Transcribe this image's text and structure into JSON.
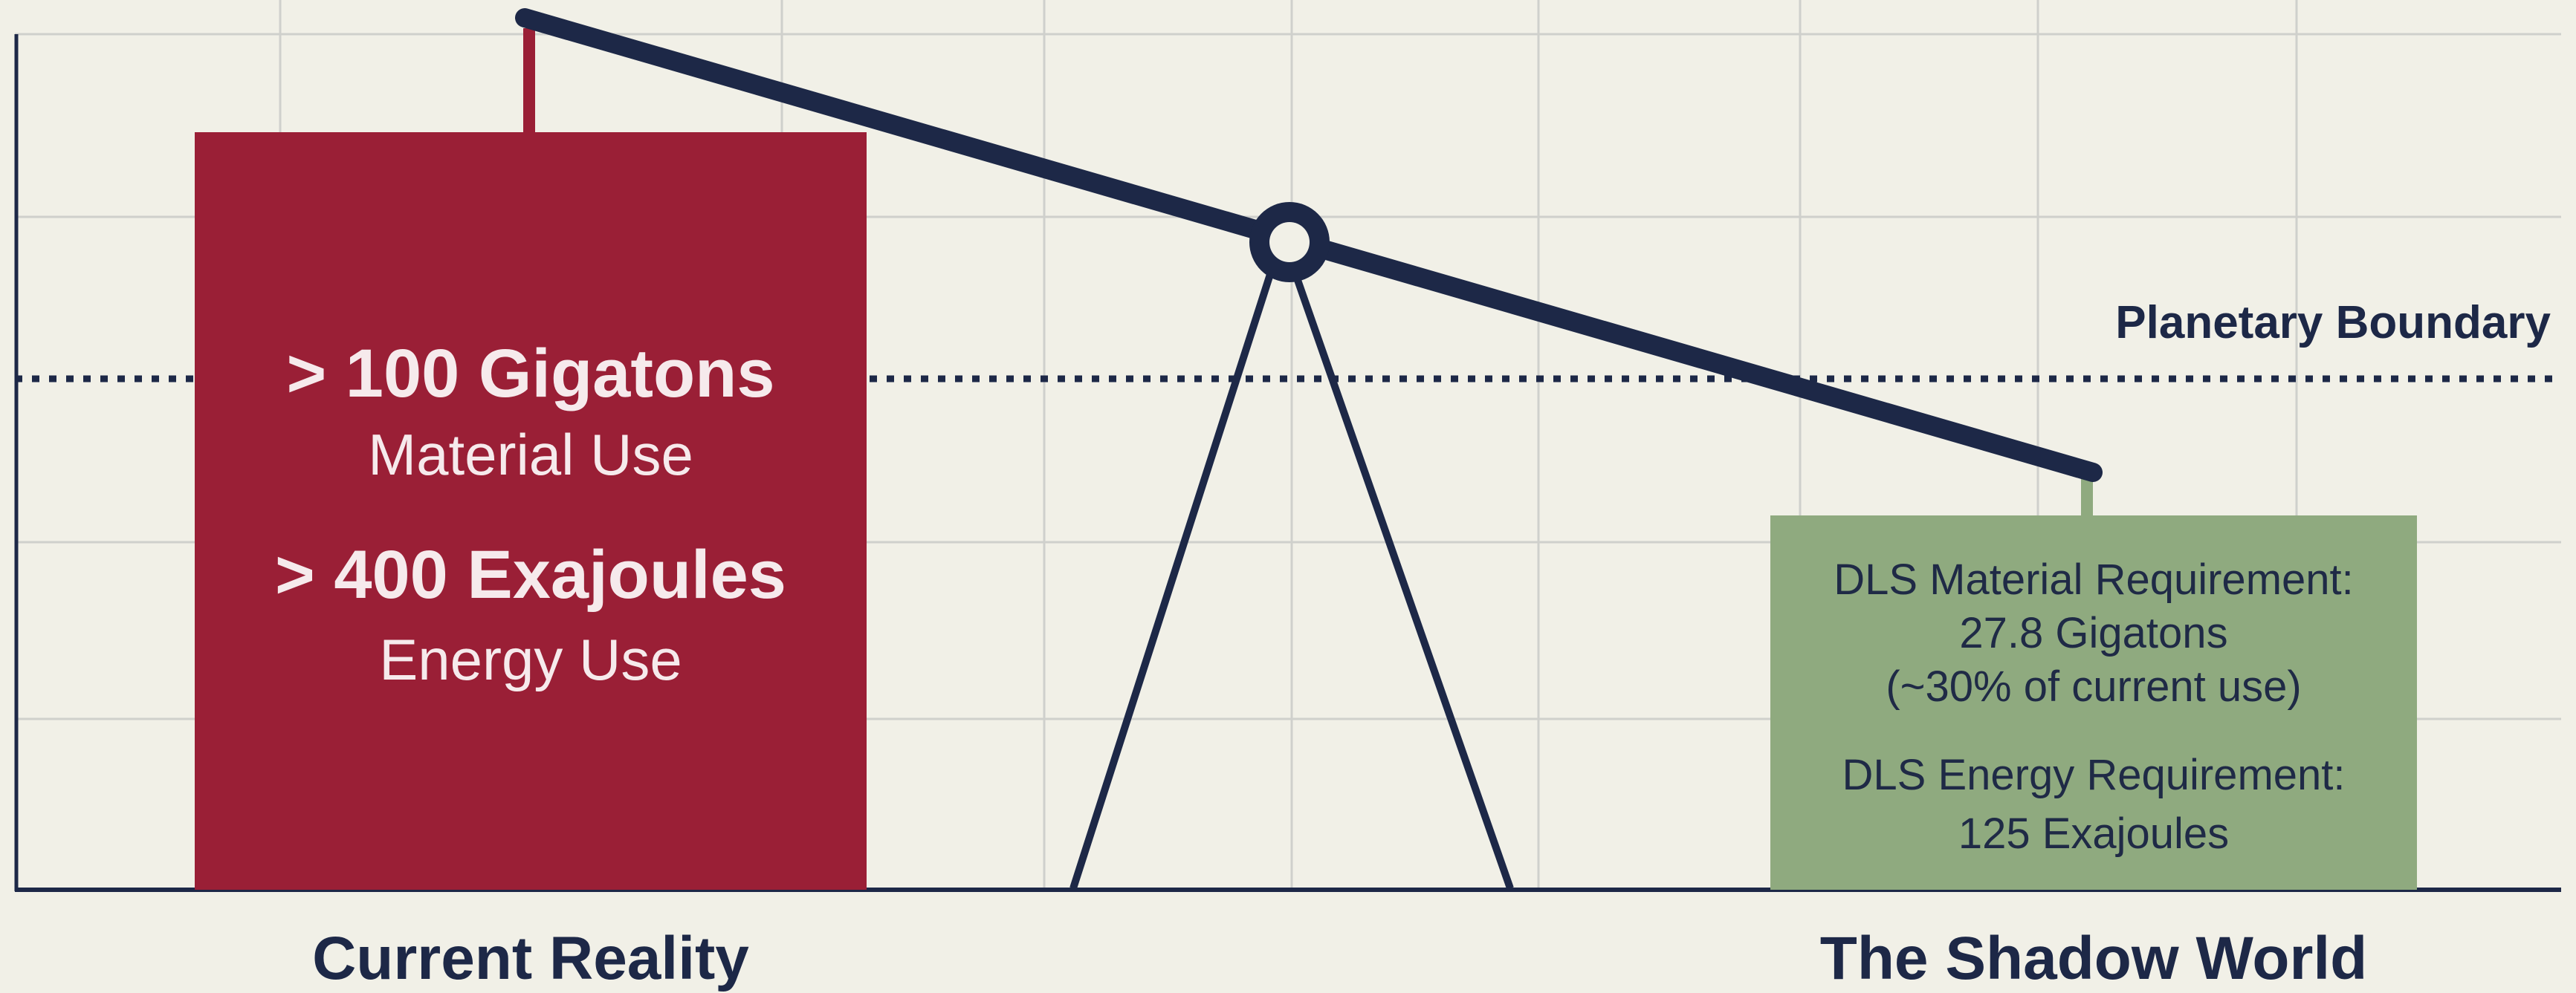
{
  "boundary": {
    "label": "Planetary Boundary"
  },
  "current_reality": {
    "label": "Current Reality",
    "material_value": "> 100 Gigatons",
    "material_caption": "Material Use",
    "energy_value": "> 400 Exajoules",
    "energy_caption": "Energy Use"
  },
  "shadow_world": {
    "label": "The Shadow World",
    "material_heading": "DLS Material Requirement:",
    "material_value": "27.8 Gigatons",
    "material_note": "(~30% of current use)",
    "energy_heading": "DLS Energy Requirement:",
    "energy_value": "125 Exajoules"
  },
  "colors": {
    "background": "#f1f0e7",
    "grid": "#cfd0cc",
    "navy": "#1d2847",
    "current_reality_box": "#9a1f36",
    "shadow_world_box": "#8faa7f"
  }
}
